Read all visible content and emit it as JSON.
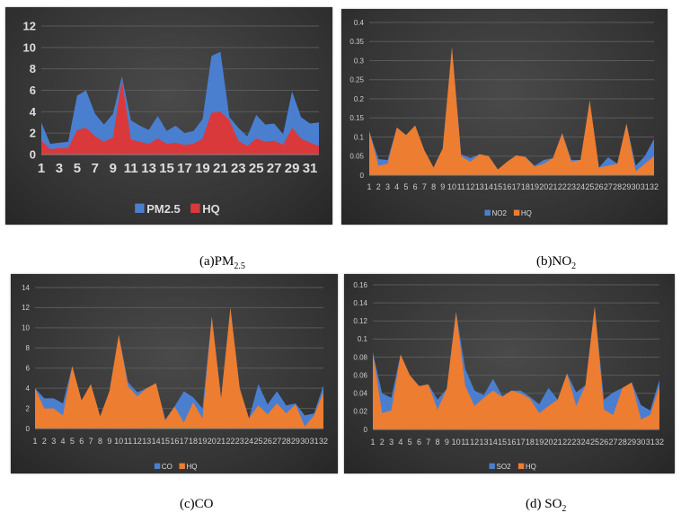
{
  "captions": [
    {
      "prefix": "(a)PM",
      "sub": "2.5"
    },
    {
      "prefix": "(b)NO",
      "sub": "2"
    },
    {
      "prefix": "(c)CO",
      "sub": ""
    },
    {
      "prefix": "(d) SO",
      "sub": "2"
    }
  ],
  "colors": {
    "blue": "#4a7fd0",
    "red": "#d9393a",
    "orange": "#ed7d31"
  },
  "chart_data": [
    {
      "type": "area",
      "title": "(a)PM2.5",
      "x": [
        1,
        2,
        3,
        4,
        5,
        6,
        7,
        8,
        9,
        10,
        11,
        12,
        13,
        14,
        15,
        16,
        17,
        18,
        19,
        20,
        21,
        22,
        23,
        24,
        25,
        26,
        27,
        28,
        29,
        30,
        31,
        32
      ],
      "x_tick_labels": [
        "1",
        "3",
        "5",
        "7",
        "9",
        "11",
        "13",
        "15",
        "17",
        "19",
        "21",
        "23",
        "25",
        "27",
        "29",
        "31"
      ],
      "y_tick_labels": [
        "0",
        "2",
        "4",
        "6",
        "8",
        "10",
        "12"
      ],
      "ylim": [
        0,
        12
      ],
      "grid": true,
      "legend_position": "bottom",
      "series": [
        {
          "name": "PM2.5",
          "color": "#4a7fd0",
          "values": [
            3,
            1,
            1.1,
            1.2,
            5.5,
            6,
            3.8,
            2.8,
            3.8,
            7.3,
            3.2,
            2.7,
            2.3,
            3.6,
            2.2,
            2.7,
            2,
            2.2,
            3.3,
            9.2,
            9.6,
            3.5,
            2.5,
            1.7,
            3.7,
            2.8,
            2.9,
            1.9,
            5.9,
            3.5,
            2.9,
            3
          ]
        },
        {
          "name": "HQ",
          "color": "#d9393a",
          "values": [
            1.3,
            0.5,
            0.6,
            0.6,
            2.3,
            2.5,
            1.7,
            1.2,
            1.6,
            7,
            1.4,
            1.2,
            1,
            1.5,
            1,
            1.1,
            0.9,
            1,
            1.5,
            3.9,
            4,
            3.2,
            1.3,
            0.8,
            1.5,
            1.2,
            1.3,
            0.9,
            2.5,
            1.5,
            1.1,
            0.8
          ]
        }
      ]
    },
    {
      "type": "area",
      "title": "(b)NO2",
      "x": [
        1,
        2,
        3,
        4,
        5,
        6,
        7,
        8,
        9,
        10,
        11,
        12,
        13,
        14,
        15,
        16,
        17,
        18,
        19,
        20,
        21,
        22,
        23,
        24,
        25,
        26,
        27,
        28,
        29,
        30,
        31,
        32
      ],
      "x_tick_labels": [
        "1",
        "2",
        "3",
        "4",
        "5",
        "6",
        "7",
        "8",
        "9",
        "10",
        "11",
        "12",
        "13",
        "14",
        "15",
        "16",
        "17",
        "18",
        "19",
        "20",
        "21",
        "22",
        "23",
        "24",
        "25",
        "26",
        "27",
        "28",
        "29",
        "30",
        "31",
        "32"
      ],
      "y_tick_labels": [
        "0",
        "0.05",
        "0.1",
        "0.15",
        "0.2",
        "0.25",
        "0.3",
        "0.35",
        "0.4"
      ],
      "ylim": [
        0,
        0.4
      ],
      "grid": true,
      "legend_position": "bottom",
      "series": [
        {
          "name": "NO2",
          "color": "#4a7fd0",
          "values": [
            0.115,
            0.042,
            0.04,
            0.125,
            0.105,
            0.13,
            0.065,
            0.02,
            0.07,
            0.335,
            0.055,
            0.045,
            0.055,
            0.05,
            0.015,
            0.035,
            0.052,
            0.048,
            0.025,
            0.04,
            0.045,
            0.11,
            0.04,
            0.04,
            0.195,
            0.02,
            0.047,
            0.03,
            0.135,
            0.025,
            0.05,
            0.095
          ]
        },
        {
          "name": "HQ",
          "color": "#ed7d31",
          "values": [
            0.115,
            0.025,
            0.03,
            0.125,
            0.105,
            0.13,
            0.065,
            0.02,
            0.07,
            0.335,
            0.05,
            0.035,
            0.055,
            0.05,
            0.015,
            0.035,
            0.052,
            0.048,
            0.022,
            0.03,
            0.045,
            0.11,
            0.035,
            0.04,
            0.195,
            0.02,
            0.025,
            0.03,
            0.135,
            0.01,
            0.03,
            0.05
          ]
        }
      ]
    },
    {
      "type": "area",
      "title": "(c)CO",
      "x": [
        1,
        2,
        3,
        4,
        5,
        6,
        7,
        8,
        9,
        10,
        11,
        12,
        13,
        14,
        15,
        16,
        17,
        18,
        19,
        20,
        21,
        22,
        23,
        24,
        25,
        26,
        27,
        28,
        29,
        30,
        31,
        32
      ],
      "x_tick_labels": [
        "1",
        "2",
        "3",
        "4",
        "5",
        "6",
        "7",
        "8",
        "9",
        "10",
        "11",
        "12",
        "13",
        "14",
        "15",
        "16",
        "17",
        "18",
        "19",
        "20",
        "21",
        "22",
        "23",
        "24",
        "25",
        "26",
        "27",
        "28",
        "29",
        "30",
        "31",
        "32"
      ],
      "y_tick_labels": [
        "0",
        "2",
        "4",
        "6",
        "8",
        "10",
        "12",
        "14"
      ],
      "ylim": [
        0,
        14
      ],
      "grid": true,
      "legend_position": "bottom",
      "series": [
        {
          "name": "CO",
          "color": "#4a7fd0",
          "values": [
            4,
            3,
            3,
            2.5,
            6.2,
            2.8,
            4.4,
            1.2,
            3.7,
            9.3,
            4.6,
            3.6,
            4,
            4.5,
            0.9,
            2.2,
            3.7,
            3.1,
            2,
            11.1,
            3,
            12,
            4,
            1,
            4.4,
            2.4,
            3.7,
            2.3,
            2.5,
            1.3,
            1.5,
            4.3
          ]
        },
        {
          "name": "HQ",
          "color": "#ed7d31",
          "values": [
            4,
            2,
            2,
            1.3,
            6.2,
            2.8,
            4.4,
            1.2,
            3.7,
            9.3,
            4.2,
            3.2,
            4,
            4.5,
            0.8,
            2.2,
            0.6,
            2.6,
            1,
            11.1,
            3,
            12,
            4,
            1,
            2.3,
            1.4,
            2.5,
            1.5,
            2.4,
            0.2,
            1.3,
            3.6
          ]
        }
      ]
    },
    {
      "type": "area",
      "title": "(d) SO2",
      "x": [
        1,
        2,
        3,
        4,
        5,
        6,
        7,
        8,
        9,
        10,
        11,
        12,
        13,
        14,
        15,
        16,
        17,
        18,
        19,
        20,
        21,
        22,
        23,
        24,
        25,
        26,
        27,
        28,
        29,
        30,
        31,
        32
      ],
      "x_tick_labels": [
        "1",
        "2",
        "3",
        "4",
        "5",
        "6",
        "7",
        "8",
        "9",
        "10",
        "11",
        "12",
        "13",
        "14",
        "15",
        "16",
        "17",
        "18",
        "19",
        "20",
        "21",
        "22",
        "23",
        "24",
        "25",
        "26",
        "27",
        "28",
        "29",
        "30",
        "31",
        "32"
      ],
      "y_tick_labels": [
        "0",
        "0.02",
        "0.04",
        "0.06",
        "0.08",
        "0.1",
        "0.12",
        "0.14",
        "0.16"
      ],
      "ylim": [
        0,
        0.16
      ],
      "grid": true,
      "legend_position": "bottom",
      "series": [
        {
          "name": "SO2",
          "color": "#4a7fd0",
          "values": [
            0.085,
            0.04,
            0.035,
            0.083,
            0.06,
            0.048,
            0.05,
            0.033,
            0.045,
            0.13,
            0.067,
            0.043,
            0.038,
            0.056,
            0.037,
            0.043,
            0.043,
            0.036,
            0.028,
            0.046,
            0.033,
            0.062,
            0.041,
            0.049,
            0.136,
            0.033,
            0.041,
            0.046,
            0.052,
            0.027,
            0.021,
            0.055
          ]
        },
        {
          "name": "HQ",
          "color": "#ed7d31",
          "values": [
            0.085,
            0.018,
            0.021,
            0.083,
            0.06,
            0.048,
            0.05,
            0.022,
            0.045,
            0.13,
            0.048,
            0.026,
            0.035,
            0.043,
            0.036,
            0.043,
            0.04,
            0.034,
            0.018,
            0.026,
            0.033,
            0.062,
            0.026,
            0.049,
            0.136,
            0.022,
            0.016,
            0.046,
            0.052,
            0.011,
            0.016,
            0.048
          ]
        }
      ]
    }
  ]
}
